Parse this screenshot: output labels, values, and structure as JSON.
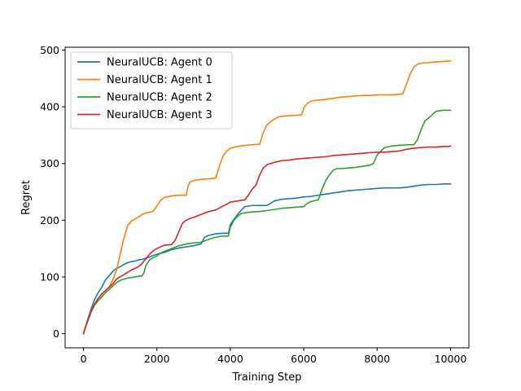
{
  "chart_data": {
    "type": "line",
    "title": "",
    "xlabel": "Training Step",
    "ylabel": "Regret",
    "xlim": [
      -500,
      10500
    ],
    "ylim": [
      -25,
      505
    ],
    "xticks": [
      0,
      2000,
      4000,
      6000,
      8000,
      10000
    ],
    "yticks": [
      0,
      100,
      200,
      300,
      400,
      500
    ],
    "xtick_labels": [
      "0",
      "2000",
      "4000",
      "6000",
      "8000",
      "10000"
    ],
    "ytick_labels": [
      "0",
      "100",
      "200",
      "300",
      "400",
      "500"
    ],
    "grid": false,
    "legend_position": "upper-left",
    "series": [
      {
        "name": "NeuralUCB: Agent 0",
        "color": "#1f77b4",
        "points": [
          [
            0,
            0
          ],
          [
            100,
            22
          ],
          [
            200,
            42
          ],
          [
            300,
            60
          ],
          [
            400,
            72
          ],
          [
            500,
            82
          ],
          [
            600,
            95
          ],
          [
            700,
            102
          ],
          [
            800,
            110
          ],
          [
            900,
            115
          ],
          [
            1000,
            118
          ],
          [
            1100,
            122
          ],
          [
            1200,
            125
          ],
          [
            1300,
            127
          ],
          [
            1400,
            128
          ],
          [
            1500,
            130
          ],
          [
            1600,
            131
          ],
          [
            1700,
            133
          ],
          [
            1800,
            135
          ],
          [
            1900,
            138
          ],
          [
            2000,
            140
          ],
          [
            2200,
            143
          ],
          [
            2400,
            148
          ],
          [
            2600,
            151
          ],
          [
            2800,
            153
          ],
          [
            3000,
            155
          ],
          [
            3200,
            158
          ],
          [
            3300,
            170
          ],
          [
            3400,
            173
          ],
          [
            3600,
            176
          ],
          [
            3800,
            177
          ],
          [
            3950,
            177
          ],
          [
            4000,
            192
          ],
          [
            4100,
            202
          ],
          [
            4200,
            210
          ],
          [
            4300,
            218
          ],
          [
            4400,
            224
          ],
          [
            4600,
            226
          ],
          [
            4800,
            226
          ],
          [
            5000,
            226
          ],
          [
            5200,
            234
          ],
          [
            5400,
            237
          ],
          [
            5600,
            238
          ],
          [
            5800,
            239
          ],
          [
            6000,
            241
          ],
          [
            6200,
            242
          ],
          [
            6400,
            244
          ],
          [
            6600,
            246
          ],
          [
            6800,
            248
          ],
          [
            7000,
            250
          ],
          [
            7200,
            252
          ],
          [
            7400,
            253
          ],
          [
            7600,
            254
          ],
          [
            7800,
            255
          ],
          [
            8000,
            256
          ],
          [
            8200,
            257
          ],
          [
            8400,
            257
          ],
          [
            8600,
            257
          ],
          [
            8800,
            258
          ],
          [
            9000,
            260
          ],
          [
            9200,
            262
          ],
          [
            9400,
            263
          ],
          [
            9600,
            263
          ],
          [
            9800,
            264
          ],
          [
            10000,
            264
          ]
        ]
      },
      {
        "name": "NeuralUCB: Agent 1",
        "color": "#ff7f0e",
        "points": [
          [
            0,
            0
          ],
          [
            100,
            20
          ],
          [
            200,
            38
          ],
          [
            300,
            52
          ],
          [
            400,
            62
          ],
          [
            500,
            70
          ],
          [
            600,
            76
          ],
          [
            700,
            82
          ],
          [
            800,
            95
          ],
          [
            900,
            112
          ],
          [
            1000,
            140
          ],
          [
            1100,
            168
          ],
          [
            1200,
            190
          ],
          [
            1300,
            198
          ],
          [
            1400,
            202
          ],
          [
            1500,
            206
          ],
          [
            1600,
            210
          ],
          [
            1700,
            213
          ],
          [
            1800,
            214
          ],
          [
            1900,
            216
          ],
          [
            2000,
            225
          ],
          [
            2100,
            235
          ],
          [
            2200,
            240
          ],
          [
            2400,
            243
          ],
          [
            2600,
            244
          ],
          [
            2800,
            244
          ],
          [
            2850,
            260
          ],
          [
            2900,
            267
          ],
          [
            3000,
            270
          ],
          [
            3200,
            272
          ],
          [
            3400,
            273
          ],
          [
            3600,
            274
          ],
          [
            3700,
            295
          ],
          [
            3800,
            313
          ],
          [
            3900,
            322
          ],
          [
            4000,
            327
          ],
          [
            4200,
            330
          ],
          [
            4400,
            332
          ],
          [
            4600,
            333
          ],
          [
            4800,
            334
          ],
          [
            4900,
            355
          ],
          [
            5000,
            368
          ],
          [
            5100,
            374
          ],
          [
            5200,
            378
          ],
          [
            5300,
            382
          ],
          [
            5500,
            384
          ],
          [
            5800,
            385
          ],
          [
            5950,
            386
          ],
          [
            6000,
            398
          ],
          [
            6100,
            406
          ],
          [
            6200,
            410
          ],
          [
            6400,
            412
          ],
          [
            6600,
            413
          ],
          [
            6800,
            415
          ],
          [
            7000,
            417
          ],
          [
            7200,
            418
          ],
          [
            7400,
            419
          ],
          [
            7600,
            420
          ],
          [
            7800,
            420
          ],
          [
            8000,
            421
          ],
          [
            8200,
            421
          ],
          [
            8400,
            421
          ],
          [
            8600,
            422
          ],
          [
            8700,
            423
          ],
          [
            8800,
            440
          ],
          [
            8900,
            458
          ],
          [
            9000,
            470
          ],
          [
            9100,
            475
          ],
          [
            9200,
            477
          ],
          [
            9400,
            478
          ],
          [
            9600,
            479
          ],
          [
            9800,
            480
          ],
          [
            10000,
            481
          ]
        ]
      },
      {
        "name": "NeuralUCB: Agent 2",
        "color": "#2ca02c",
        "points": [
          [
            0,
            0
          ],
          [
            100,
            20
          ],
          [
            200,
            37
          ],
          [
            300,
            50
          ],
          [
            400,
            58
          ],
          [
            500,
            65
          ],
          [
            600,
            72
          ],
          [
            700,
            78
          ],
          [
            800,
            84
          ],
          [
            900,
            90
          ],
          [
            1000,
            94
          ],
          [
            1100,
            96
          ],
          [
            1200,
            98
          ],
          [
            1400,
            100
          ],
          [
            1600,
            102
          ],
          [
            1650,
            108
          ],
          [
            1700,
            120
          ],
          [
            1800,
            130
          ],
          [
            1900,
            134
          ],
          [
            2000,
            137
          ],
          [
            2100,
            142
          ],
          [
            2200,
            145
          ],
          [
            2400,
            150
          ],
          [
            2600,
            155
          ],
          [
            2800,
            158
          ],
          [
            3000,
            160
          ],
          [
            3200,
            161
          ],
          [
            3400,
            166
          ],
          [
            3600,
            170
          ],
          [
            3800,
            172
          ],
          [
            3950,
            172
          ],
          [
            4000,
            188
          ],
          [
            4100,
            200
          ],
          [
            4200,
            207
          ],
          [
            4300,
            212
          ],
          [
            4500,
            214
          ],
          [
            4700,
            215
          ],
          [
            4900,
            216
          ],
          [
            5000,
            217
          ],
          [
            5200,
            219
          ],
          [
            5400,
            221
          ],
          [
            5600,
            222
          ],
          [
            5800,
            223
          ],
          [
            6000,
            224
          ],
          [
            6100,
            230
          ],
          [
            6200,
            233
          ],
          [
            6400,
            236
          ],
          [
            6500,
            255
          ],
          [
            6600,
            270
          ],
          [
            6700,
            280
          ],
          [
            6800,
            288
          ],
          [
            6900,
            291
          ],
          [
            7000,
            291
          ],
          [
            7200,
            292
          ],
          [
            7400,
            293
          ],
          [
            7600,
            295
          ],
          [
            7800,
            297
          ],
          [
            7900,
            300
          ],
          [
            8000,
            315
          ],
          [
            8100,
            322
          ],
          [
            8200,
            328
          ],
          [
            8400,
            331
          ],
          [
            8600,
            332
          ],
          [
            8800,
            333
          ],
          [
            9000,
            333
          ],
          [
            9100,
            342
          ],
          [
            9200,
            360
          ],
          [
            9300,
            375
          ],
          [
            9400,
            380
          ],
          [
            9500,
            386
          ],
          [
            9600,
            392
          ],
          [
            9800,
            394
          ],
          [
            10000,
            394
          ]
        ]
      },
      {
        "name": "NeuralUCB: Agent 3",
        "color": "#d62728",
        "points": [
          [
            0,
            0
          ],
          [
            100,
            20
          ],
          [
            200,
            37
          ],
          [
            300,
            52
          ],
          [
            400,
            62
          ],
          [
            500,
            70
          ],
          [
            600,
            76
          ],
          [
            700,
            82
          ],
          [
            800,
            88
          ],
          [
            900,
            96
          ],
          [
            1000,
            100
          ],
          [
            1100,
            104
          ],
          [
            1200,
            108
          ],
          [
            1300,
            112
          ],
          [
            1400,
            115
          ],
          [
            1500,
            118
          ],
          [
            1600,
            124
          ],
          [
            1700,
            132
          ],
          [
            1800,
            140
          ],
          [
            1900,
            146
          ],
          [
            2000,
            150
          ],
          [
            2100,
            153
          ],
          [
            2200,
            156
          ],
          [
            2400,
            157
          ],
          [
            2500,
            165
          ],
          [
            2600,
            180
          ],
          [
            2700,
            195
          ],
          [
            2800,
            200
          ],
          [
            2900,
            203
          ],
          [
            3000,
            205
          ],
          [
            3200,
            210
          ],
          [
            3400,
            215
          ],
          [
            3600,
            218
          ],
          [
            3800,
            225
          ],
          [
            3900,
            228
          ],
          [
            4000,
            232
          ],
          [
            4200,
            234
          ],
          [
            4400,
            236
          ],
          [
            4500,
            245
          ],
          [
            4600,
            255
          ],
          [
            4700,
            262
          ],
          [
            4800,
            280
          ],
          [
            4900,
            292
          ],
          [
            5000,
            298
          ],
          [
            5200,
            302
          ],
          [
            5400,
            305
          ],
          [
            5600,
            306
          ],
          [
            5800,
            308
          ],
          [
            6000,
            309
          ],
          [
            6200,
            310
          ],
          [
            6400,
            311
          ],
          [
            6600,
            312
          ],
          [
            6800,
            314
          ],
          [
            7000,
            315
          ],
          [
            7200,
            316
          ],
          [
            7400,
            317
          ],
          [
            7600,
            318
          ],
          [
            7800,
            319
          ],
          [
            8000,
            320
          ],
          [
            8200,
            320
          ],
          [
            8400,
            321
          ],
          [
            8600,
            322
          ],
          [
            8800,
            325
          ],
          [
            9000,
            327
          ],
          [
            9200,
            328
          ],
          [
            9400,
            329
          ],
          [
            9600,
            329
          ],
          [
            9800,
            330
          ],
          [
            9950,
            330
          ],
          [
            10000,
            331
          ]
        ]
      }
    ]
  }
}
